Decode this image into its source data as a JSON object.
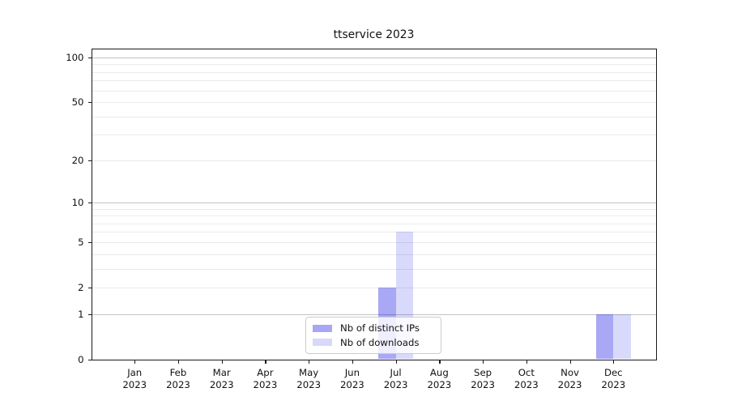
{
  "chart_data": {
    "type": "bar",
    "title": "ttservice 2023",
    "categories": [
      "Jan",
      "Feb",
      "Mar",
      "Apr",
      "May",
      "Jun",
      "Jul",
      "Aug",
      "Sep",
      "Oct",
      "Nov",
      "Dec"
    ],
    "x_tick_second_line": "2023",
    "series": [
      {
        "name": "Nb of distinct IPs",
        "color": "rgba(0,0,225,0.34)",
        "color_on_white": "#a7a7f5",
        "values": [
          0,
          0,
          0,
          0,
          0,
          0,
          2,
          0,
          0,
          0,
          0,
          1
        ]
      },
      {
        "name": "Nb of downloads",
        "color": "rgba(0,0,225,0.15)",
        "color_on_white": "#d8d8fa",
        "values": [
          0,
          0,
          0,
          0,
          0,
          0,
          6,
          0,
          0,
          0,
          0,
          1
        ]
      }
    ],
    "scale": "log1p",
    "ylim": [
      0,
      114
    ],
    "yticks": [
      0,
      1,
      2,
      5,
      10,
      20,
      50,
      100
    ],
    "major_gridlines": [
      1,
      10,
      100
    ],
    "minor_gridlines": [
      2,
      3,
      4,
      5,
      6,
      7,
      8,
      9,
      20,
      30,
      40,
      50,
      60,
      70,
      80,
      90
    ],
    "grid": true,
    "legend_position": "lower center",
    "grid_major_color": "#c3c3c3",
    "grid_minor_color": "#eaeaea",
    "axis_color": "#1a1a1a"
  }
}
